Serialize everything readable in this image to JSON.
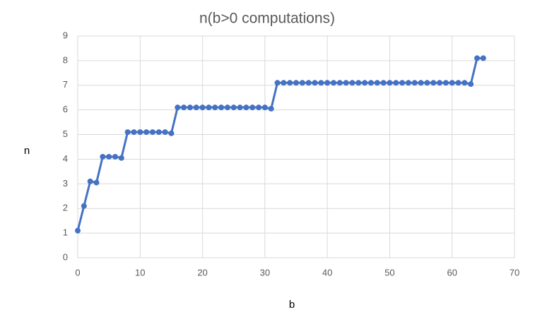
{
  "chart_data": {
    "type": "line",
    "title": "n(b>0 computations)",
    "x_label": "b",
    "y_label": "n",
    "x": [
      0,
      1,
      2,
      3,
      4,
      5,
      6,
      7,
      8,
      9,
      10,
      11,
      12,
      13,
      14,
      15,
      16,
      17,
      18,
      19,
      20,
      21,
      22,
      23,
      24,
      25,
      26,
      27,
      28,
      29,
      30,
      31,
      32,
      33,
      34,
      35,
      36,
      37,
      38,
      39,
      40,
      41,
      42,
      43,
      44,
      45,
      46,
      47,
      48,
      49,
      50,
      51,
      52,
      53,
      54,
      55,
      56,
      57,
      58,
      59,
      60,
      61,
      62,
      63,
      64,
      65
    ],
    "series": [
      {
        "name": "n",
        "color": "#4472c4",
        "values": [
          1.1,
          2.1,
          3.1,
          3.05,
          4.1,
          4.1,
          4.1,
          4.05,
          5.1,
          5.1,
          5.1,
          5.1,
          5.1,
          5.1,
          5.1,
          5.05,
          6.1,
          6.1,
          6.1,
          6.1,
          6.1,
          6.1,
          6.1,
          6.1,
          6.1,
          6.1,
          6.1,
          6.1,
          6.1,
          6.1,
          6.1,
          6.05,
          7.1,
          7.1,
          7.1,
          7.1,
          7.1,
          7.1,
          7.1,
          7.1,
          7.1,
          7.1,
          7.1,
          7.1,
          7.1,
          7.1,
          7.1,
          7.1,
          7.1,
          7.1,
          7.1,
          7.1,
          7.1,
          7.1,
          7.1,
          7.1,
          7.1,
          7.1,
          7.1,
          7.1,
          7.1,
          7.1,
          7.1,
          7.05,
          8.1,
          8.1
        ]
      }
    ],
    "xlim": [
      0,
      70
    ],
    "xticks": [
      0,
      10,
      20,
      30,
      40,
      50,
      60,
      70
    ],
    "ylim": [
      0,
      9
    ],
    "yticks": [
      0,
      1,
      2,
      3,
      4,
      5,
      6,
      7,
      8,
      9
    ],
    "grid": true
  }
}
